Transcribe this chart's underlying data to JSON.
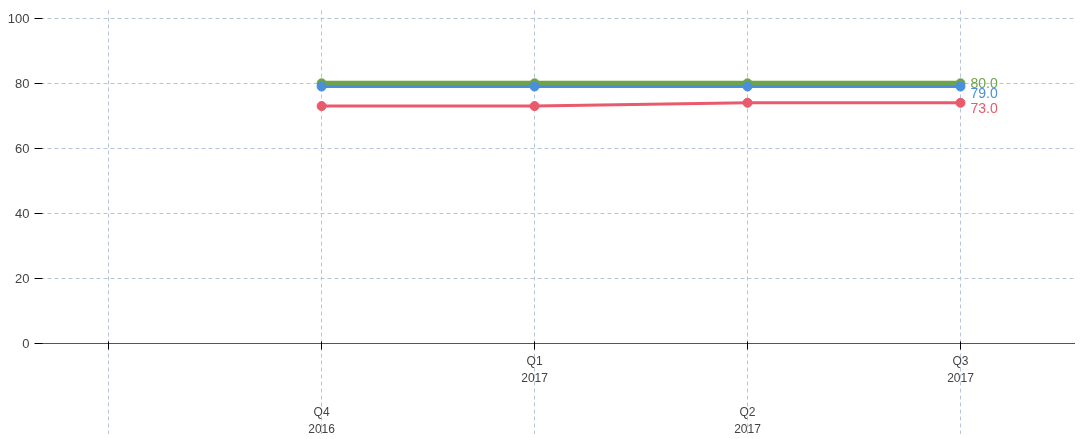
{
  "chart_data": {
    "type": "line",
    "categories": [
      null,
      "Q4\n2016",
      "Q1\n2017",
      "Q2\n2017",
      "Q3\n2017"
    ],
    "series": [
      {
        "color": "#6ea34c",
        "values": [
          null,
          80,
          80,
          80,
          80
        ],
        "value_labels": [
          null,
          null,
          null,
          null,
          "80.0"
        ]
      },
      {
        "color": "#4a8fdb",
        "values": [
          null,
          79,
          79,
          79,
          79
        ],
        "value_labels": [
          null,
          null,
          null,
          null,
          "79.0"
        ]
      },
      {
        "color": "#e85a6c",
        "values": [
          null,
          73,
          73,
          74,
          74
        ]
      }
    ],
    "annotations": [
      {
        "text": "73.0",
        "x": "Q3\n2017",
        "y": 74
      }
    ],
    "ylim": [
      0,
      100
    ],
    "yticks": [
      0,
      20,
      40,
      60,
      80,
      100
    ],
    "grid": true,
    "marker": "circle",
    "line_style": "solid"
  }
}
